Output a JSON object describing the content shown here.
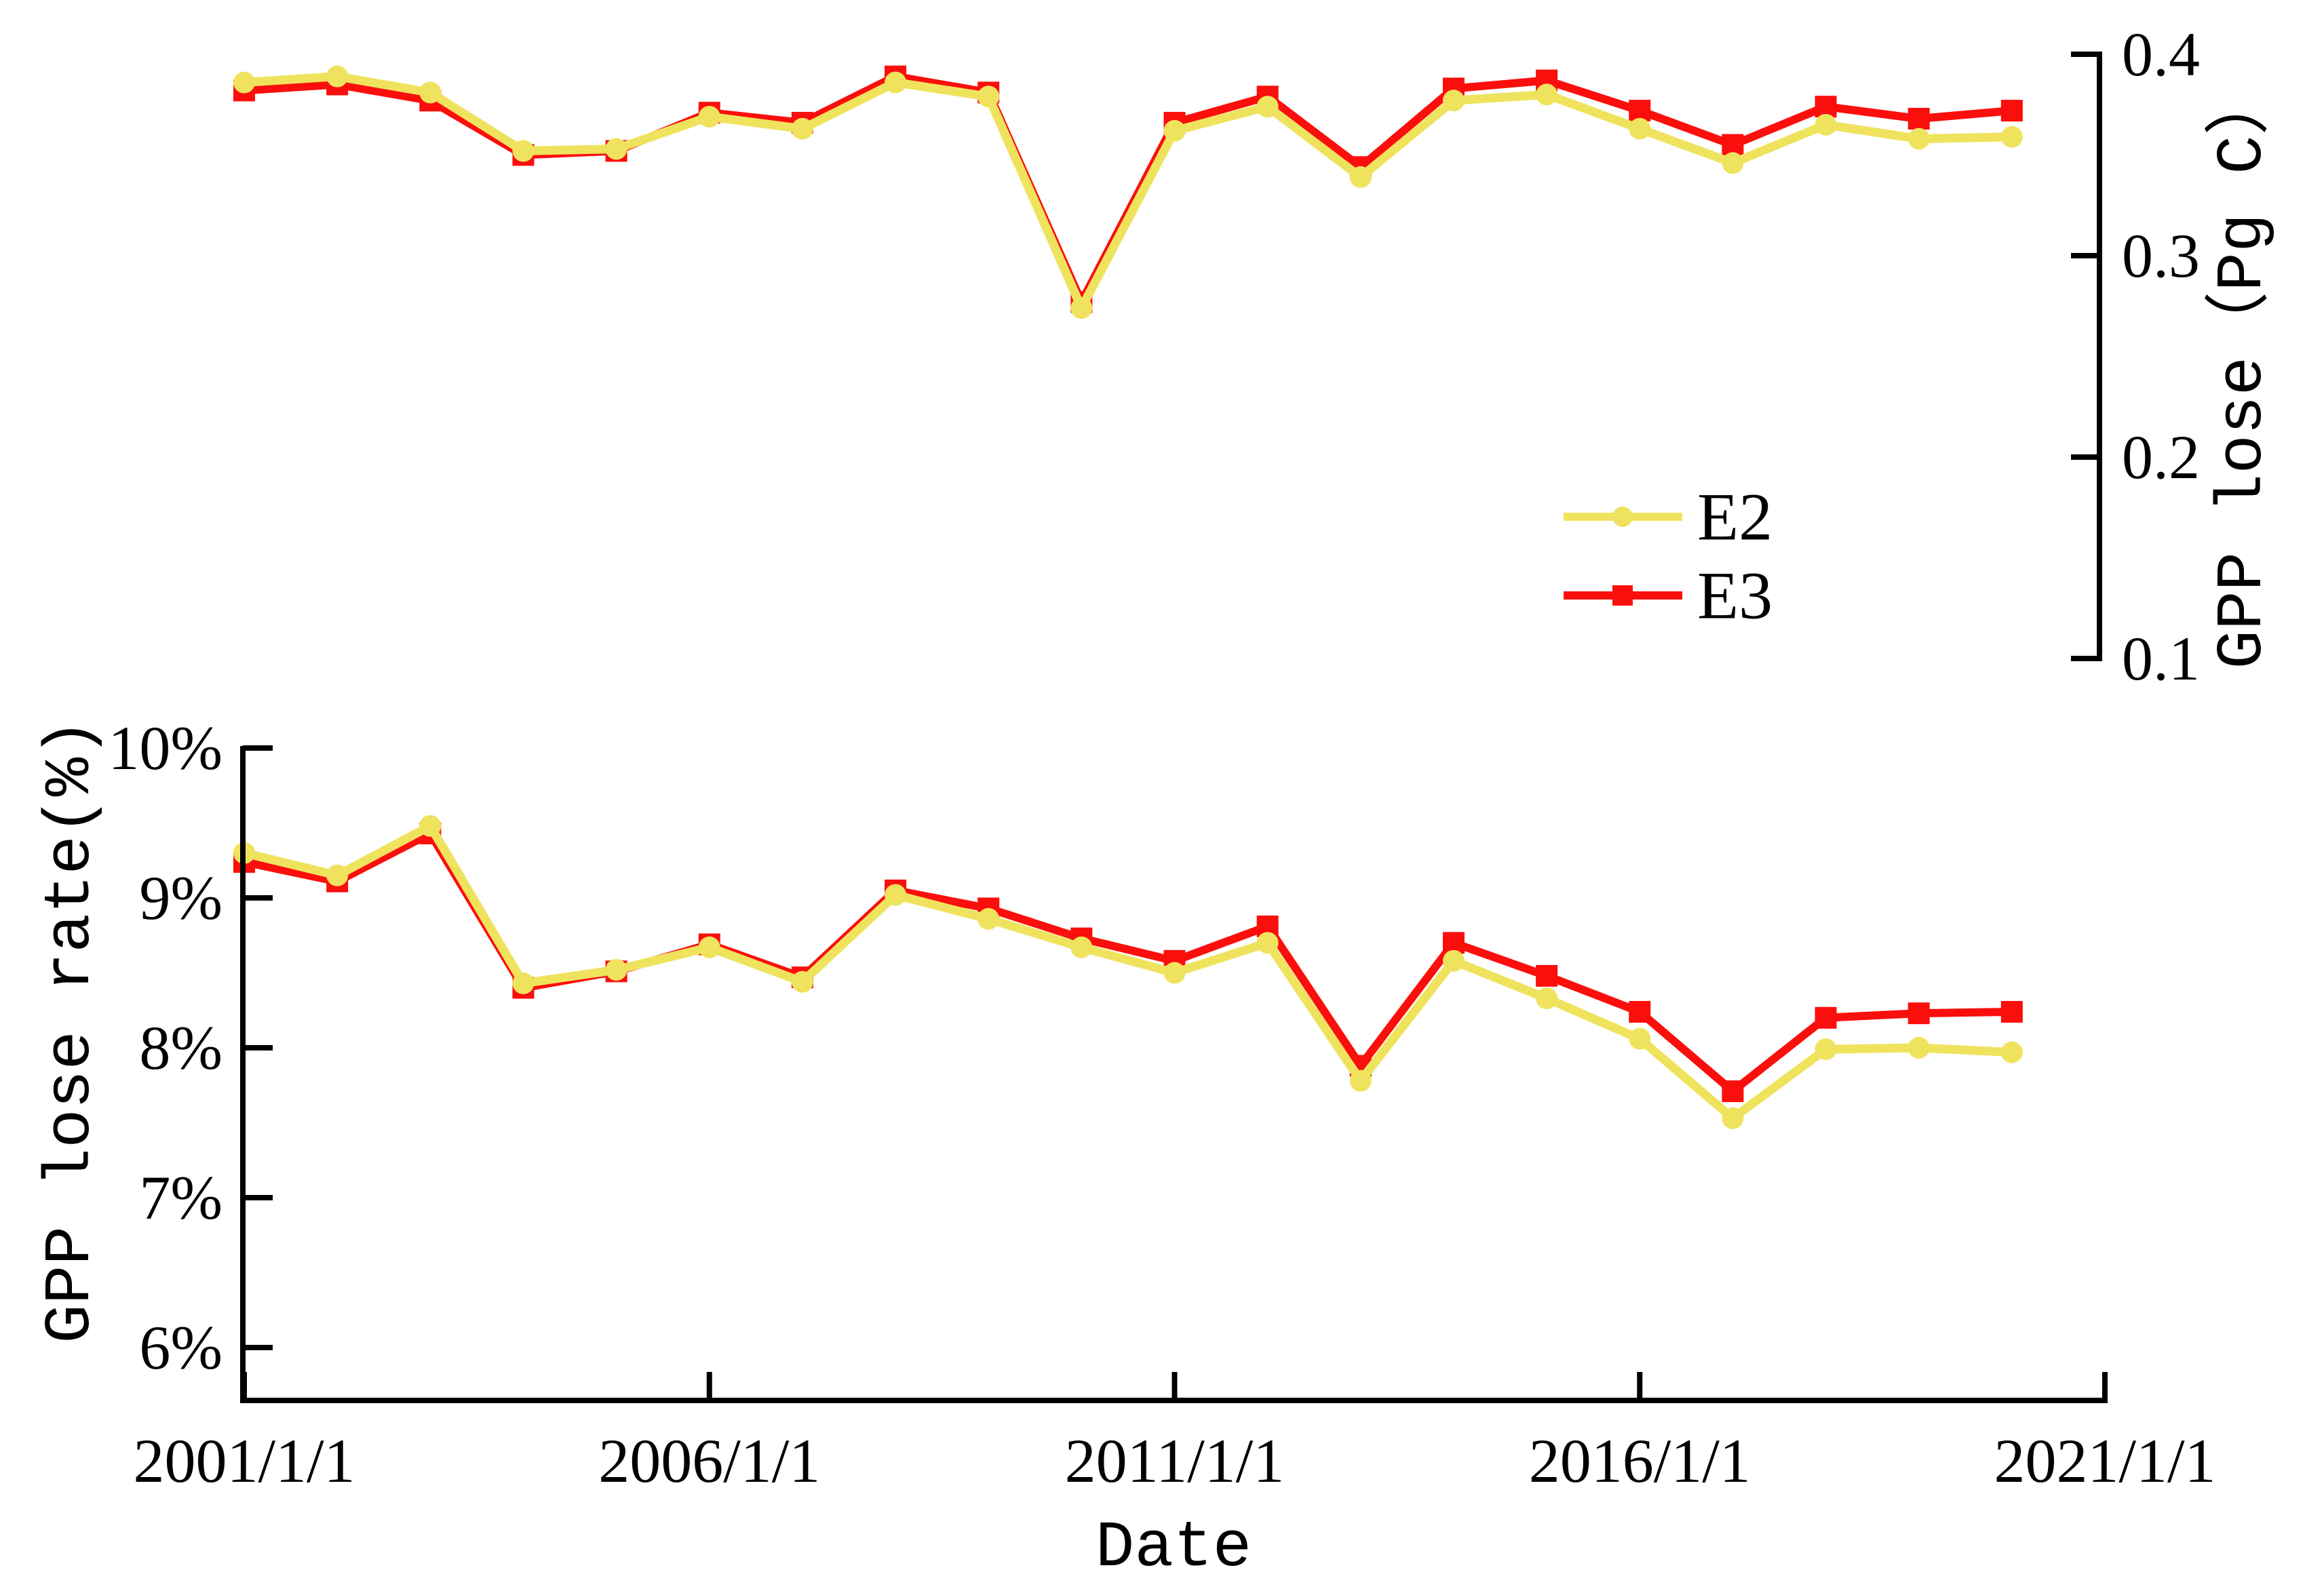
{
  "page": {
    "background": "#ffffff"
  },
  "legend": {
    "entries": [
      {
        "label": "E2",
        "color": "#efe35e",
        "marker": "circle"
      },
      {
        "label": "E3",
        "color": "#fa0f0c",
        "marker": "square"
      }
    ]
  },
  "chart_data": [
    {
      "id": "gpp-lose-top",
      "type": "line",
      "title": "",
      "ylabel": "GPP lose（Pg C）",
      "yaxis_side": "right",
      "ylim": [
        0.1,
        0.4
      ],
      "yticks": [
        0.4,
        0.3,
        0.2,
        0.1
      ],
      "ytick_labels": [
        "0.4",
        "0.3",
        "0.2",
        "0.1"
      ],
      "grid": false,
      "x_years": [
        2001,
        2002,
        2003,
        2004,
        2005,
        2006,
        2007,
        2008,
        2009,
        2010,
        2011,
        2012,
        2013,
        2014,
        2015,
        2016,
        2017,
        2018,
        2019,
        2020
      ],
      "series": [
        {
          "name": "E2",
          "color": "#efe35e",
          "marker": "circle",
          "values": [
            0.386,
            0.389,
            0.381,
            0.352,
            0.353,
            0.369,
            0.363,
            0.386,
            0.379,
            0.274,
            0.362,
            0.374,
            0.339,
            0.377,
            0.38,
            0.363,
            0.346,
            0.365,
            0.358,
            0.359
          ]
        },
        {
          "name": "E3",
          "color": "#fa0f0c",
          "marker": "square",
          "values": [
            0.382,
            0.385,
            0.377,
            0.35,
            0.352,
            0.371,
            0.366,
            0.389,
            0.381,
            0.277,
            0.366,
            0.379,
            0.344,
            0.383,
            0.387,
            0.372,
            0.355,
            0.374,
            0.368,
            0.372
          ]
        }
      ]
    },
    {
      "id": "gpp-lose-rate-bottom",
      "type": "line",
      "title": "",
      "xlabel": "Date",
      "ylabel": "GPP lose rate(%)",
      "yaxis_side": "left",
      "ylim": [
        6,
        10
      ],
      "yticks": [
        10,
        9,
        8,
        7,
        6
      ],
      "ytick_labels": [
        "10%",
        "9%",
        "8%",
        "7%",
        "6%"
      ],
      "xtick_years": [
        2001,
        2006,
        2011,
        2016,
        2021
      ],
      "xtick_labels": [
        "2001/1/1",
        "2006/1/1",
        "2011/1/1",
        "2016/1/1",
        "2021/1/1"
      ],
      "grid": false,
      "x_years": [
        2001,
        2002,
        2003,
        2004,
        2005,
        2006,
        2007,
        2008,
        2009,
        2010,
        2011,
        2012,
        2013,
        2014,
        2015,
        2016,
        2017,
        2018,
        2019,
        2020
      ],
      "series": [
        {
          "name": "E2",
          "color": "#efe35e",
          "marker": "circle",
          "values": [
            9.3,
            9.15,
            9.48,
            8.43,
            8.52,
            8.67,
            8.44,
            9.02,
            8.86,
            8.67,
            8.5,
            8.7,
            7.78,
            8.58,
            8.33,
            8.06,
            7.53,
            7.99,
            8.0,
            7.97
          ]
        },
        {
          "name": "E3",
          "color": "#fa0f0c",
          "marker": "square",
          "values": [
            9.24,
            9.11,
            9.43,
            8.4,
            8.51,
            8.69,
            8.47,
            9.05,
            8.93,
            8.73,
            8.58,
            8.81,
            7.88,
            8.7,
            8.48,
            8.24,
            7.71,
            8.2,
            8.23,
            8.24
          ]
        }
      ]
    }
  ]
}
